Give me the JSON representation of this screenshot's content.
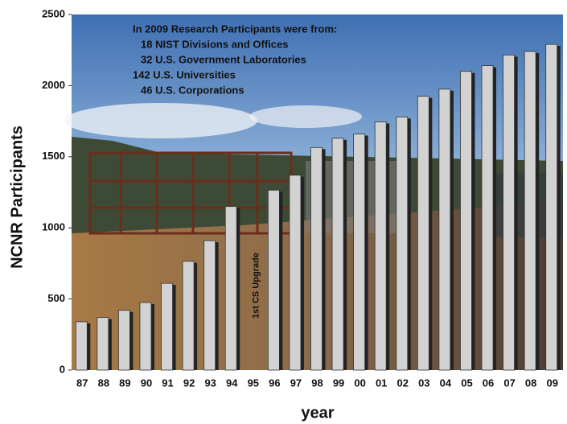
{
  "chart_data": {
    "type": "bar",
    "y_label": "NCNR Participants",
    "x_label": "year",
    "categories": [
      "87",
      "88",
      "89",
      "90",
      "91",
      "92",
      "93",
      "94",
      "95",
      "96",
      "97",
      "98",
      "99",
      "00",
      "01",
      "02",
      "03",
      "04",
      "05",
      "06",
      "07",
      "08",
      "09"
    ],
    "values": [
      340,
      370,
      420,
      475,
      610,
      765,
      910,
      1150,
      null,
      1265,
      1370,
      1565,
      1630,
      1660,
      1745,
      1780,
      1925,
      1975,
      2100,
      2140,
      2215,
      2240,
      2290
    ],
    "color": "#d2d2d2",
    "ylim": [
      0,
      2500
    ],
    "yticks": [
      0,
      500,
      1000,
      1500,
      2000,
      2500
    ],
    "annotations": [
      "In 2009 Research Participants were from:",
      "18 NIST Divisions and Offices",
      "32 U.S. Government Laboratories",
      "142 U.S. Universities",
      "46 U.S. Corporations"
    ],
    "event_label": "1st CS Upgrade"
  }
}
